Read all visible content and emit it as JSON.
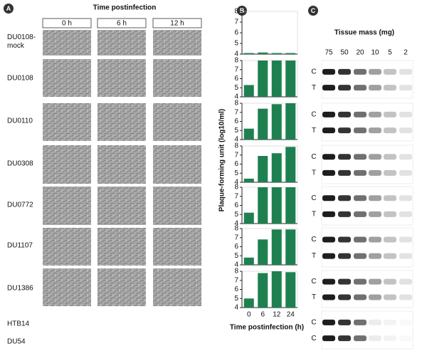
{
  "panel_a": {
    "label": "A",
    "title": "Time postinfection",
    "columns": [
      "0 h",
      "6 h",
      "12 h"
    ],
    "rows": [
      "DU0108-mock",
      "DU0108",
      "DU0110",
      "DU0308",
      "DU0772",
      "DU1107",
      "DU1386",
      "HTB14",
      "DU54"
    ]
  },
  "chart_data": {
    "type": "bar",
    "label": "B",
    "y_label": "Plaque-forming unit (log10/ml)",
    "x_label": "Time postinfection (h)",
    "categories": [
      "0",
      "6",
      "12",
      "24"
    ],
    "color": "#1e8050",
    "ylim": [
      4,
      8
    ],
    "yticks": [
      4,
      5,
      6,
      7,
      8
    ],
    "panels": [
      {
        "values": [
          4.1,
          4.15,
          4.1,
          4.1
        ]
      },
      {
        "values": [
          5.3,
          8,
          8,
          8
        ]
      },
      {
        "values": [
          5.2,
          7.4,
          7.9,
          8
        ]
      },
      {
        "values": [
          4.4,
          6.9,
          7.2,
          7.9
        ]
      },
      {
        "values": [
          5.2,
          8,
          8,
          8
        ]
      },
      {
        "values": [
          4.8,
          6.8,
          7.9,
          7.9
        ]
      },
      {
        "values": [
          5.0,
          7.8,
          8.0,
          7.9
        ]
      }
    ]
  },
  "panel_c": {
    "label": "C",
    "title": "Tissue mass (mg)",
    "columns": [
      "75",
      "50",
      "20",
      "10",
      "5",
      "2"
    ],
    "rows": [
      [
        "C",
        "T"
      ],
      [
        "C",
        "T"
      ],
      [
        "C",
        "T"
      ],
      [
        "C",
        "T"
      ],
      [
        "C",
        "T"
      ],
      [
        "C",
        "T"
      ],
      [
        "C",
        "C"
      ]
    ]
  }
}
